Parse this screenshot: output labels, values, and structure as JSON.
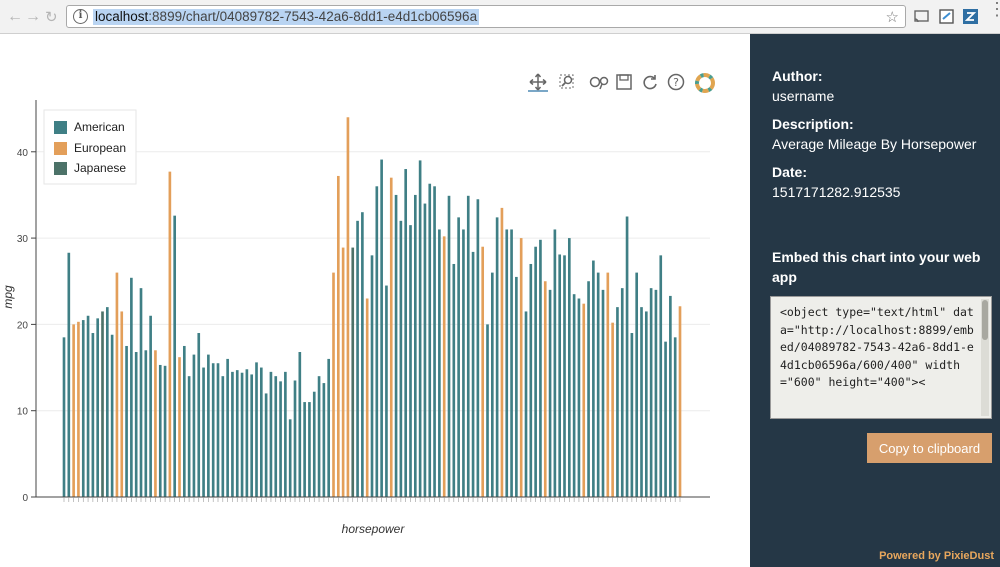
{
  "browser": {
    "url_host": "localhost",
    "url_path": ":8899/chart/04089782-7543-42a6-8dd1-e4d1cb06596a"
  },
  "panel": {
    "author_label": "Author:",
    "author_value": "username",
    "description_label": "Description:",
    "description_value": "Average Mileage By Horsepower",
    "date_label": "Date:",
    "date_value": "1517171282.912535",
    "embed_title": "Embed this chart into your web app",
    "embed_code": "<object type=\"text/html\" data=\"http://localhost:8899/embed/04089782-7543-42a6-8dd1-e4d1cb06596a/600/400\" width=\"600\" height=\"400\"><",
    "copy_label": "Copy to clipboard",
    "powered_by": "Powered by PixieDust"
  },
  "colors": {
    "american": "#3f7f85",
    "european": "#e39f5a",
    "japanese": "#4c7268",
    "panel_bg": "#253746",
    "accent": "#d79f6d"
  },
  "chart_data": {
    "type": "bar",
    "xlabel": "horsepower",
    "ylabel": "mpg",
    "ylim": [
      0,
      46
    ],
    "yticks": [
      0,
      10,
      20,
      30,
      40
    ],
    "grid": true,
    "legend_position": "top-left",
    "series": [
      {
        "name": "American",
        "color": "#3f7f85"
      },
      {
        "name": "European",
        "color": "#e39f5a"
      },
      {
        "name": "Japanese",
        "color": "#4c7268"
      }
    ],
    "bars": [
      [
        0,
        18.5
      ],
      [
        0,
        28.3
      ],
      [
        1,
        20
      ],
      [
        1,
        20.3
      ],
      [
        0,
        20.5
      ],
      [
        0,
        21
      ],
      [
        0,
        19
      ],
      [
        0,
        20.7
      ],
      [
        2,
        21.5
      ],
      [
        0,
        22
      ],
      [
        0,
        18.8
      ],
      [
        1,
        26
      ],
      [
        1,
        21.5
      ],
      [
        0,
        17.5
      ],
      [
        0,
        25.4
      ],
      [
        0,
        16.8
      ],
      [
        0,
        24.2
      ],
      [
        0,
        17
      ],
      [
        0,
        21
      ],
      [
        1,
        17
      ],
      [
        0,
        15.3
      ],
      [
        0,
        15.2
      ],
      [
        1,
        37.7
      ],
      [
        0,
        32.6
      ],
      [
        1,
        16.2
      ],
      [
        0,
        17.5
      ],
      [
        0,
        14
      ],
      [
        0,
        16.5
      ],
      [
        0,
        19
      ],
      [
        0,
        15
      ],
      [
        0,
        16.5
      ],
      [
        0,
        15.5
      ],
      [
        0,
        15.5
      ],
      [
        0,
        14
      ],
      [
        0,
        16
      ],
      [
        0,
        14.5
      ],
      [
        0,
        14.7
      ],
      [
        0,
        14.4
      ],
      [
        0,
        14.8
      ],
      [
        0,
        14.2
      ],
      [
        0,
        15.6
      ],
      [
        0,
        15
      ],
      [
        0,
        12
      ],
      [
        0,
        14.5
      ],
      [
        0,
        14
      ],
      [
        0,
        13.4
      ],
      [
        0,
        14.5
      ],
      [
        0,
        9
      ],
      [
        0,
        13.5
      ],
      [
        0,
        16.8
      ],
      [
        0,
        11
      ],
      [
        0,
        11
      ],
      [
        0,
        12.2
      ],
      [
        0,
        14
      ],
      [
        0,
        13.2
      ],
      [
        0,
        16
      ],
      [
        1,
        26
      ],
      [
        1,
        37.2
      ],
      [
        1,
        28.9
      ],
      [
        1,
        44
      ],
      [
        2,
        28.9
      ],
      [
        0,
        32
      ],
      [
        0,
        33
      ],
      [
        1,
        23
      ],
      [
        0,
        28
      ],
      [
        0,
        36
      ],
      [
        0,
        39.1
      ],
      [
        0,
        24.5
      ],
      [
        1,
        37
      ],
      [
        0,
        35
      ],
      [
        0,
        32
      ],
      [
        0,
        38
      ],
      [
        0,
        31.5
      ],
      [
        0,
        35
      ],
      [
        0,
        39
      ],
      [
        0,
        34
      ],
      [
        0,
        36.3
      ],
      [
        0,
        36
      ],
      [
        0,
        31
      ],
      [
        1,
        30.2
      ],
      [
        0,
        34.9
      ],
      [
        0,
        27
      ],
      [
        0,
        32.4
      ],
      [
        0,
        31
      ],
      [
        0,
        34.9
      ],
      [
        0,
        28.4
      ],
      [
        0,
        34.5
      ],
      [
        1,
        29
      ],
      [
        0,
        20
      ],
      [
        0,
        26
      ],
      [
        0,
        32.4
      ],
      [
        1,
        33.5
      ],
      [
        0,
        31
      ],
      [
        0,
        31
      ],
      [
        0,
        25.5
      ],
      [
        1,
        30
      ],
      [
        0,
        21.5
      ],
      [
        0,
        27
      ],
      [
        0,
        29
      ],
      [
        0,
        29.8
      ],
      [
        1,
        25
      ],
      [
        0,
        24
      ],
      [
        0,
        31
      ],
      [
        0,
        28.1
      ],
      [
        0,
        28
      ],
      [
        0,
        30
      ],
      [
        0,
        23.5
      ],
      [
        0,
        23
      ],
      [
        1,
        22.4
      ],
      [
        0,
        25
      ],
      [
        0,
        27.4
      ],
      [
        0,
        26
      ],
      [
        0,
        24
      ],
      [
        1,
        26
      ],
      [
        1,
        20.2
      ],
      [
        0,
        22
      ],
      [
        0,
        24.2
      ],
      [
        0,
        32.5
      ],
      [
        0,
        19
      ],
      [
        0,
        26
      ],
      [
        0,
        22
      ],
      [
        0,
        21.5
      ],
      [
        0,
        24.2
      ],
      [
        0,
        24
      ],
      [
        0,
        28
      ],
      [
        0,
        18
      ],
      [
        0,
        23.3
      ],
      [
        0,
        18.5
      ],
      [
        1,
        22.1
      ]
    ]
  }
}
